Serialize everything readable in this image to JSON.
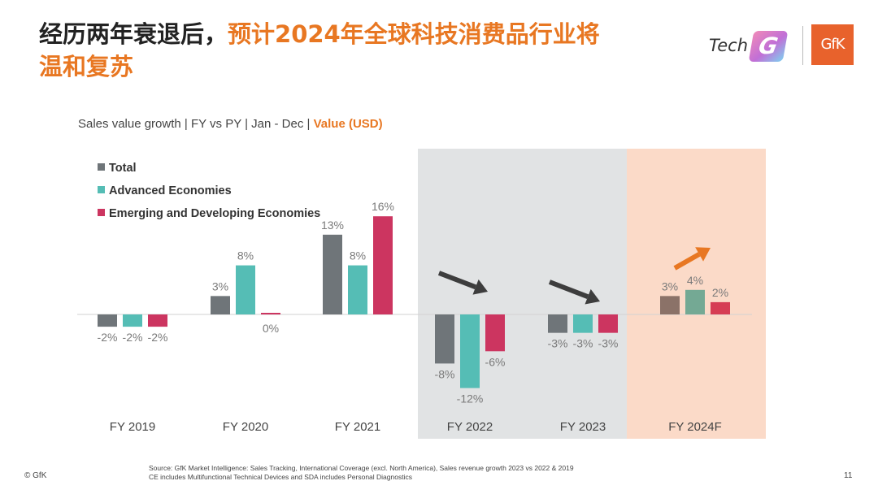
{
  "header": {
    "title_black": "经历两年衰退后，",
    "title_orange": "预计2024年全球科技消费品行业将",
    "title_line2": "温和复苏",
    "logo_tech_text": "Tech",
    "logo_g_text": "G",
    "logo_gfk_text": "GfK"
  },
  "subtitle": {
    "plain": "Sales value growth | FY vs PY | Jan - Dec | ",
    "highlight": "Value (USD)"
  },
  "colors": {
    "total": "#6f7579",
    "advanced": "#55bdb5",
    "emerging": "#cc3560",
    "total_forecast": "#8b7268",
    "advanced_forecast": "#74a994",
    "emerging_forecast": "#d63d54",
    "shade_grey": "#e1e3e4",
    "shade_peach": "#fbdac8",
    "arrow_dark": "#3d3d3d",
    "arrow_orange": "#e87722"
  },
  "chart_data": {
    "type": "bar",
    "categories": [
      "FY 2019",
      "FY 2020",
      "FY 2021",
      "FY 2022",
      "FY 2023",
      "FY 2024F"
    ],
    "series": [
      {
        "name": "Total",
        "values": [
          -2,
          3,
          13,
          -8,
          -3,
          3
        ],
        "labels": [
          "-2%",
          "3%",
          "13%",
          "-8%",
          "-3%",
          "3%"
        ]
      },
      {
        "name": "Advanced Economies",
        "values": [
          -2,
          8,
          8,
          -12,
          -3,
          4
        ],
        "labels": [
          "-2%",
          "8%",
          "8%",
          "-12%",
          "-3%",
          "4%"
        ]
      },
      {
        "name": "Emerging and Developing Economies",
        "values": [
          -2,
          0,
          16,
          -6,
          -3,
          2
        ],
        "labels": [
          "-2%",
          "0%",
          "16%",
          "-6%",
          "-3%",
          "2%"
        ]
      }
    ],
    "trend_arrows": [
      "down",
      "down",
      "up"
    ],
    "legend_position": "top-left",
    "shaded_categories": {
      "grey": [
        "FY 2022",
        "FY 2023"
      ],
      "peach": [
        "FY 2024F"
      ]
    },
    "ylim": [
      -14,
      18
    ]
  },
  "footer": {
    "copyright": "© GfK",
    "source_line1": "Source: GfK Market Intelligence: Sales Tracking, International Coverage (excl. North America), Sales revenue growth 2023 vs 2022 & 2019",
    "source_line2": "CE includes Multifunctional Technical Devices and SDA includes Personal Diagnostics",
    "page_number": "11"
  }
}
